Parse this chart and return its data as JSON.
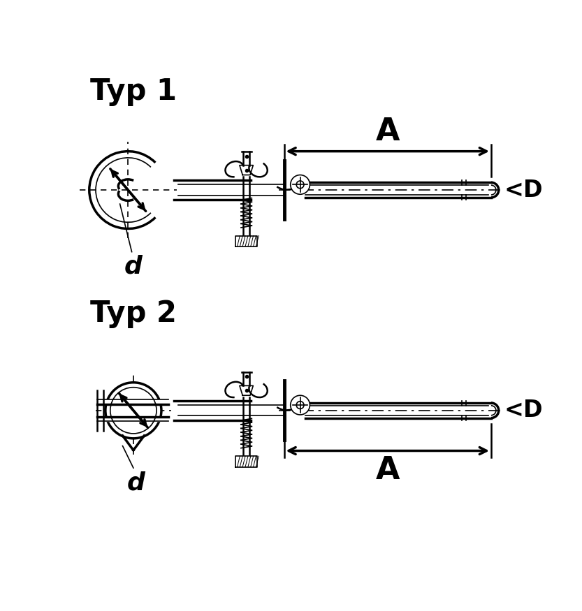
{
  "title1": "Typ 1",
  "title2": "Typ 2",
  "label_A": "A",
  "label_D": "<D",
  "label_d": "d",
  "bg_color": "#ffffff",
  "line_color": "#000000",
  "title_fontsize": 30,
  "label_fontsize": 22,
  "dim_fontsize": 32,
  "d_fontsize": 26
}
